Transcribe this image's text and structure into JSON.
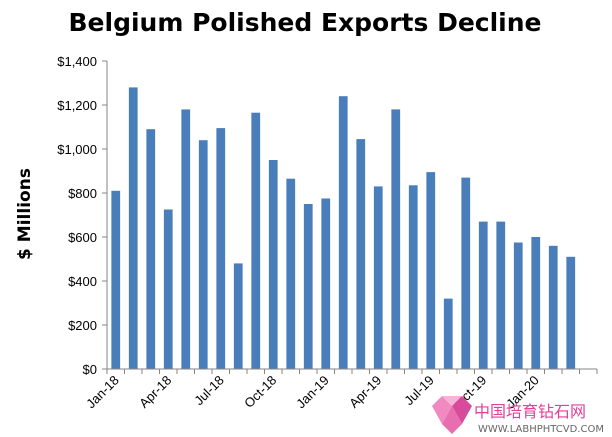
{
  "chart_data": {
    "type": "bar",
    "title": "Belgium Polished Exports Decline",
    "xlabel": "",
    "ylabel": "$ Millions",
    "ylim": [
      0,
      1400
    ],
    "yticks": [
      0,
      200,
      400,
      600,
      800,
      1000,
      1200,
      1400
    ],
    "ytick_labels": [
      "$0",
      "$200",
      "$400",
      "$600",
      "$800",
      "$1,000",
      "$1,200",
      "$1,400"
    ],
    "categories": [
      "Jan-18",
      "Feb-18",
      "Mar-18",
      "Apr-18",
      "May-18",
      "Jun-18",
      "Jul-18",
      "Aug-18",
      "Sep-18",
      "Oct-18",
      "Nov-18",
      "Dec-18",
      "Jan-19",
      "Feb-19",
      "Mar-19",
      "Apr-19",
      "May-19",
      "Jun-19",
      "Jul-19",
      "Aug-19",
      "Sep-19",
      "Oct-19",
      "Nov-19",
      "Dec-19",
      "Jan-20",
      "Feb-20",
      "Mar-20",
      "Apr-20"
    ],
    "x_tick_labels": [
      "Jan-18",
      "Apr-18",
      "Jul-18",
      "Oct-18",
      "Jan-19",
      "Apr-19",
      "Jul-19",
      "Oct-19",
      "Jan-20"
    ],
    "x_tick_every": 3,
    "values": [
      810,
      1280,
      1090,
      725,
      1180,
      1040,
      1095,
      480,
      1165,
      950,
      865,
      750,
      775,
      1240,
      1045,
      830,
      1180,
      835,
      895,
      320,
      870,
      670,
      670,
      575,
      600,
      560,
      510,
      0
    ],
    "bar_color": "#4a7ebb",
    "grid": false,
    "legend": "none"
  },
  "watermark": {
    "text": "中国培育钻石网",
    "url": "WWW.LABHPHTCVD.COM"
  }
}
